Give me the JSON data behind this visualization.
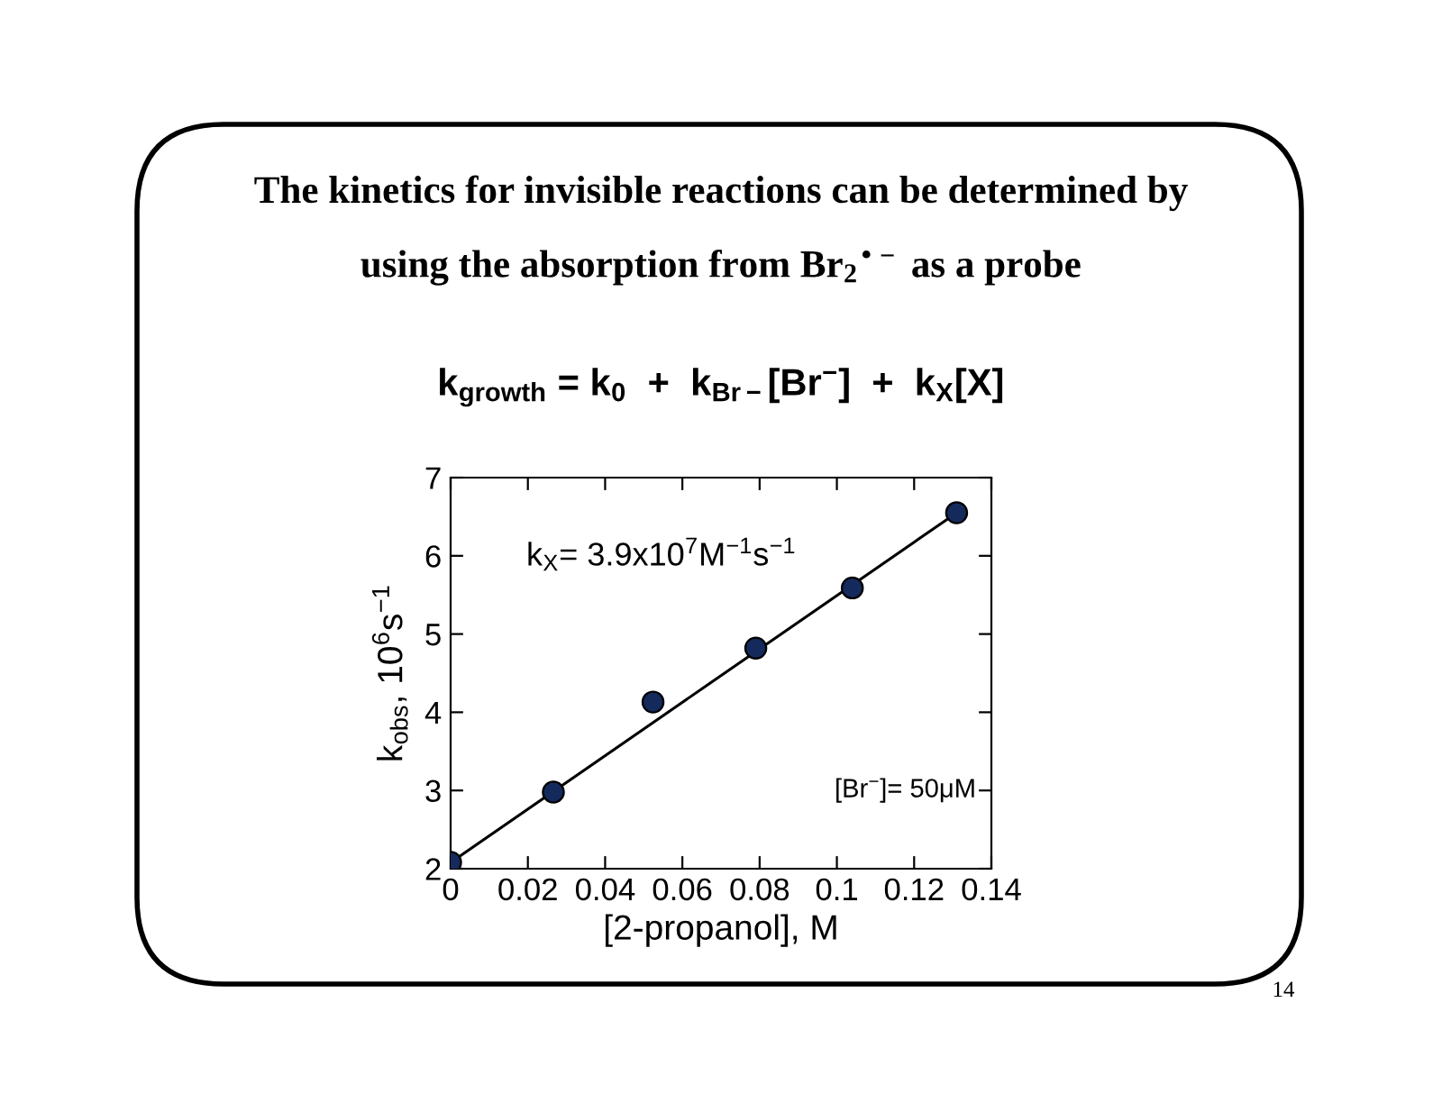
{
  "chart_data": {
    "type": "scatter",
    "title": "The kinetics for invisible reactions can be determined by\nusing the absorption from Br$_{2}$$^{•−}$ as a probe",
    "subtitle": "k$_{growth}$ = k$_{0}$  +  k$_{Br−}$[Br$^{−}$]  +  k$_{X}$[X]",
    "xlabel": "[2-propanol], M",
    "ylabel": "k$_{obs}$, 10$^{6}$s$^{−1}$",
    "series": [
      {
        "color": "#152a5c",
        "marker": "circle",
        "x": [
          0,
          0.0266,
          0.0524,
          0.079,
          0.104,
          0.131
        ],
        "values": [
          2.08,
          2.98,
          4.13,
          4.82,
          5.59,
          6.55
        ]
      },
      {
        "type": "line",
        "color": "#000000",
        "marker": "none",
        "line_style": "solid",
        "x": [
          0,
          0.131
        ],
        "values": [
          2.08,
          6.55
        ]
      }
    ],
    "annotations": [
      "k$_{X}$= 3.9x10$^{7}$M$^{−1}$s$^{−1}$",
      "[Br$^{−}$]= 50μM",
      "14"
    ],
    "xlim": [
      0,
      0.14
    ],
    "ylim": [
      2,
      7
    ],
    "xticks": [
      0,
      0.02,
      0.04,
      0.06,
      0.08,
      0.1,
      0.12,
      0.14
    ],
    "yticks": [
      2,
      3,
      4,
      5,
      6,
      7
    ],
    "grid": false,
    "legend": false
  }
}
